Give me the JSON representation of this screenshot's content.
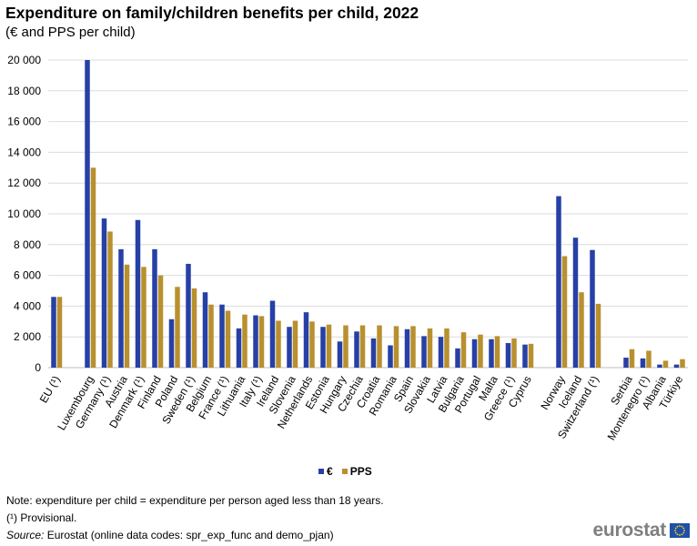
{
  "title": "Expenditure on family/children benefits per child, 2022",
  "subtitle": "(€ and PPS per child)",
  "chart_data": {
    "type": "bar",
    "ylim": [
      0,
      20000
    ],
    "yticks": [
      0,
      2000,
      4000,
      6000,
      8000,
      10000,
      12000,
      14000,
      16000,
      18000,
      20000
    ],
    "ytick_labels": [
      "0",
      "2 000",
      "4 000",
      "6 000",
      "8 000",
      "10 000",
      "12 000",
      "14 000",
      "16 000",
      "18 000",
      "20 000"
    ],
    "grid": true,
    "legend_position": "bottom",
    "categories": [
      "EU (¹)",
      "",
      "Luxembourg",
      "Germany (¹)",
      "Austria",
      "Denmark (¹)",
      "Finland",
      "Poland",
      "Sweden (¹)",
      "Belgium",
      "France (¹)",
      "Lithuania",
      "Italy (¹)",
      "Ireland",
      "Slovenia",
      "Netherlands",
      "Estonia",
      "Hungary",
      "Czechia",
      "Croatia",
      "Romania",
      "Spain",
      "Slovakia",
      "Latvia",
      "Bulgaria",
      "Portugal",
      "Malta",
      "Greece (¹)",
      "Cyprus",
      "",
      "Norway",
      "Iceland",
      "Switzerland (¹)",
      "",
      "Serbia",
      "Montenegro (¹)",
      "Albania",
      "Türkiye"
    ],
    "series": [
      {
        "name": "€",
        "color": "#2640a5",
        "values": [
          4600,
          null,
          20000,
          9700,
          7700,
          9600,
          7700,
          3150,
          6750,
          4900,
          4100,
          2550,
          3400,
          4350,
          2650,
          3600,
          2650,
          1700,
          2350,
          1900,
          1450,
          2500,
          2050,
          2000,
          1250,
          1850,
          1850,
          1600,
          1500,
          null,
          11150,
          8450,
          7650,
          null,
          650,
          600,
          200,
          200
        ]
      },
      {
        "name": "PPS",
        "color": "#b8902e",
        "values": [
          4600,
          null,
          13000,
          8850,
          6700,
          6550,
          6000,
          5250,
          5150,
          4100,
          3700,
          3450,
          3350,
          3050,
          3050,
          3000,
          2800,
          2750,
          2750,
          2750,
          2700,
          2700,
          2550,
          2550,
          2300,
          2150,
          2050,
          1900,
          1550,
          null,
          7250,
          4900,
          4150,
          null,
          1200,
          1100,
          450,
          550
        ]
      }
    ]
  },
  "notes": {
    "line1": "Note: expenditure per child = expenditure per person aged less than 18 years.",
    "line2": "(¹) Provisional.",
    "source_label": "Source:",
    "source_text": " Eurostat (online data codes: spr_exp_func and demo_pjan)"
  },
  "logo": {
    "text": "eurostat",
    "icon": "eu-flag-icon"
  }
}
